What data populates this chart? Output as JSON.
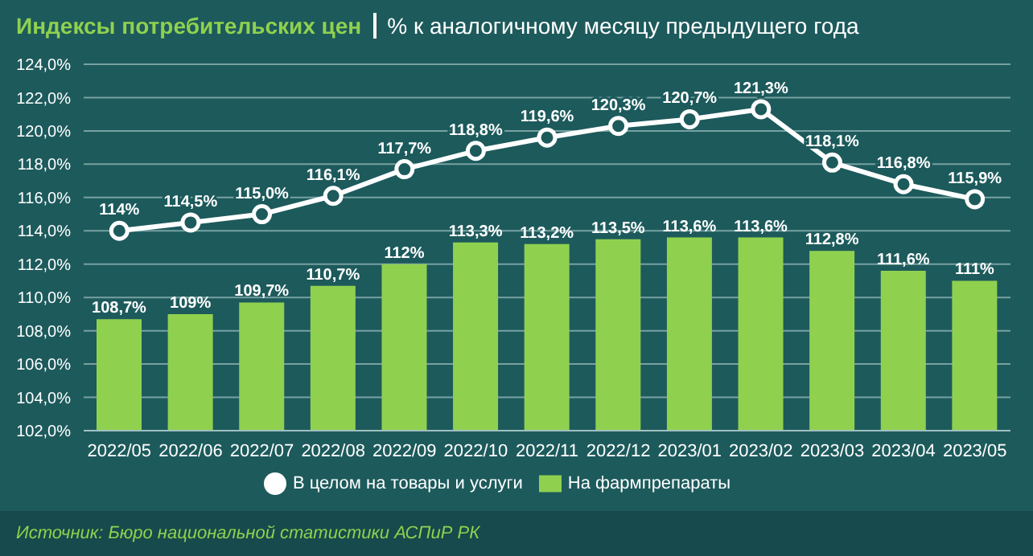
{
  "chart_data": {
    "type": "bar",
    "title": "Индексы потребительских цен",
    "subtitle": "% к аналогичному месяцу предыдущего года",
    "categories": [
      "2022/05",
      "2022/06",
      "2022/07",
      "2022/08",
      "2022/09",
      "2022/10",
      "2022/11",
      "2022/12",
      "2023/01",
      "2023/02",
      "2023/03",
      "2023/04",
      "2023/05"
    ],
    "series": [
      {
        "name": "На фармпрепараты",
        "color": "#8fd14f",
        "values": [
          108.7,
          109,
          109.7,
          110.7,
          112,
          113.3,
          113.2,
          113.5,
          113.6,
          113.6,
          112.8,
          111.6,
          111
        ],
        "value_labels": [
          "108,7%",
          "109%",
          "109,7%",
          "110,7%",
          "112%",
          "113,3%",
          "113,2%",
          "113,5%",
          "113,6%",
          "113,6%",
          "112,8%",
          "111,6%",
          "111%"
        ]
      },
      {
        "name": "В целом на товары и услуги",
        "type": "line",
        "color": "#ffffff",
        "marker": "circle",
        "values": [
          114,
          114.5,
          115.0,
          116.1,
          117.7,
          118.8,
          119.6,
          120.3,
          120.7,
          121.3,
          118.1,
          116.8,
          115.9
        ],
        "value_labels": [
          "114%",
          "114,5%",
          "115,0%",
          "116,1%",
          "117,7%",
          "118,8%",
          "119,6%",
          "120,3%",
          "120,7%",
          "121,3%",
          "118,1%",
          "116,8%",
          "115,9%"
        ]
      }
    ],
    "ylim": [
      102,
      124
    ],
    "yticks": [
      {
        "value": 102,
        "label": "102,0%"
      },
      {
        "value": 104,
        "label": "104,0%"
      },
      {
        "value": 106,
        "label": "106,0%"
      },
      {
        "value": 108,
        "label": "108,0%"
      },
      {
        "value": 110,
        "label": "110,0%"
      },
      {
        "value": 112,
        "label": "112,0%"
      },
      {
        "value": 114,
        "label": "114,0%"
      },
      {
        "value": 116,
        "label": "116,0%"
      },
      {
        "value": 118,
        "label": "118,0%"
      },
      {
        "value": 120,
        "label": "120,0%"
      },
      {
        "value": 122,
        "label": "122,0%"
      },
      {
        "value": 124,
        "label": "124,0%"
      }
    ],
    "grid": "y",
    "legend": "bottom",
    "annotations": [
      "Источник: Бюро национальной статистики АСПиР РК"
    ]
  }
}
